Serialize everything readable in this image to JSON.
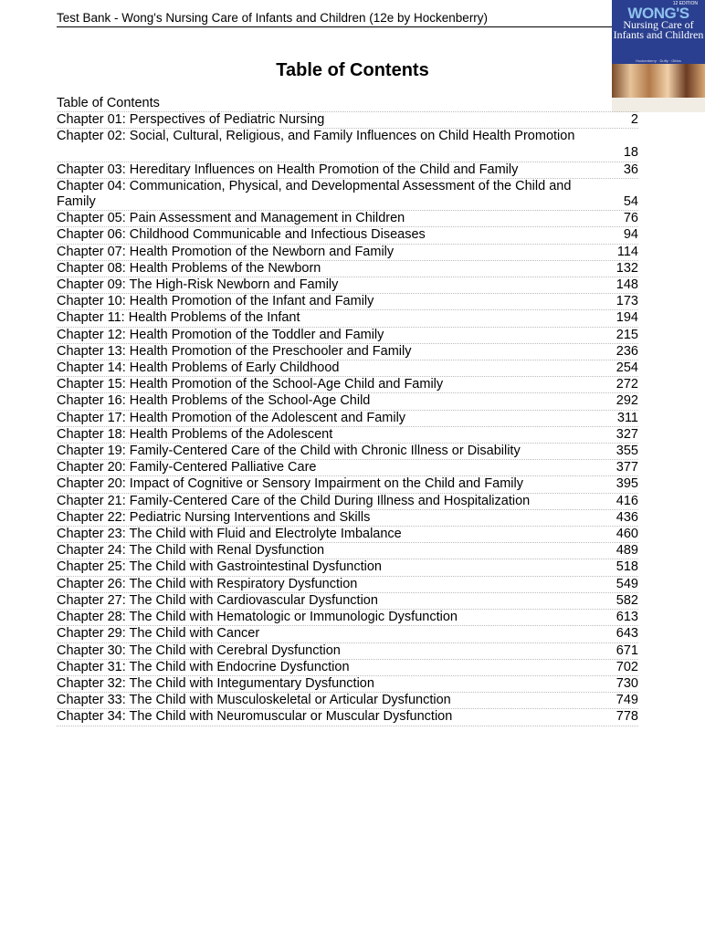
{
  "header": {
    "text": "Test Bank - Wong's Nursing Care of Infants and Children (12e by Hockenberry)"
  },
  "cover": {
    "edition": "12 EDITION",
    "title_line1": "WONG'S",
    "title_line2": "Nursing Care of Infants and Children",
    "authors": "Hockenberry · Duffy · Gibbs"
  },
  "title": "Table of Contents",
  "toc_label": "Table of Contents",
  "entries": [
    {
      "title": "Chapter 01: Perspectives of Pediatric Nursing",
      "page": "2"
    },
    {
      "title": "Chapter 02: Social, Cultural, Religious, and Family Influences on Child Health Promotion",
      "page": "18",
      "wrap": true
    },
    {
      "title": "Chapter 03: Hereditary Influences on Health Promotion of the Child and Family",
      "page": "36"
    },
    {
      "title": "Chapter 04: Communication, Physical, and Developmental Assessment of the Child and Family",
      "page": "54"
    },
    {
      "title": "Chapter 05: Pain Assessment and Management in Children",
      "page": "76"
    },
    {
      "title": "Chapter 06: Childhood Communicable and Infectious Diseases",
      "page": "94"
    },
    {
      "title": "Chapter 07: Health Promotion of the Newborn and Family",
      "page": "114"
    },
    {
      "title": "Chapter 08: Health Problems of the Newborn",
      "page": "132"
    },
    {
      "title": "Chapter 09: The High-Risk Newborn and Family",
      "page": "148"
    },
    {
      "title": "Chapter 10: Health Promotion of the Infant and Family",
      "page": "173"
    },
    {
      "title": "Chapter 11: Health Problems of the Infant",
      "page": "194"
    },
    {
      "title": "Chapter 12: Health Promotion of the Toddler and Family",
      "page": "215"
    },
    {
      "title": "Chapter 13: Health Promotion of the Preschooler and Family",
      "page": "236"
    },
    {
      "title": "Chapter 14: Health Problems of Early Childhood",
      "page": "254"
    },
    {
      "title": "Chapter 15: Health Promotion of the School-Age Child and Family",
      "page": "272"
    },
    {
      "title": "Chapter 16: Health Problems of the School-Age Child",
      "page": "292"
    },
    {
      "title": "Chapter 17: Health Promotion of the Adolescent and Family",
      "page": "311"
    },
    {
      "title": "Chapter 18: Health Problems of the Adolescent",
      "page": "327"
    },
    {
      "title": "Chapter 19: Family-Centered Care of the Child with Chronic Illness or Disability",
      "page": "355"
    },
    {
      "title": "Chapter 20: Family-Centered Palliative Care",
      "page": "377"
    },
    {
      "title": "Chapter 20: Impact of Cognitive or Sensory Impairment on the Child and Family",
      "page": "395"
    },
    {
      "title": "Chapter 21: Family-Centered Care of the Child During Illness and Hospitalization",
      "page": "416"
    },
    {
      "title": "Chapter 22: Pediatric Nursing Interventions and Skills",
      "page": "436"
    },
    {
      "title": "Chapter 23: The Child with Fluid and Electrolyte Imbalance",
      "page": "460"
    },
    {
      "title": "Chapter 24: The Child with Renal Dysfunction",
      "page": "489"
    },
    {
      "title": "Chapter 25: The Child with Gastrointestinal Dysfunction",
      "page": "518"
    },
    {
      "title": "Chapter 26: The Child with Respiratory Dysfunction",
      "page": "549"
    },
    {
      "title": "Chapter 27: The Child with Cardiovascular Dysfunction",
      "page": "582"
    },
    {
      "title": "Chapter 28: The Child with Hematologic or Immunologic Dysfunction",
      "page": "613"
    },
    {
      "title": "Chapter 29: The Child with Cancer",
      "page": "643"
    },
    {
      "title": "Chapter 30: The Child with Cerebral Dysfunction",
      "page": "671"
    },
    {
      "title": "Chapter 31: The Child with Endocrine Dysfunction",
      "page": "702"
    },
    {
      "title": "Chapter 32: The Child with Integumentary Dysfunction",
      "page": "730"
    },
    {
      "title": "Chapter 33: The Child with Musculoskeletal or Articular Dysfunction",
      "page": "749"
    },
    {
      "title": "Chapter 34: The Child with Neuromuscular or Muscular Dysfunction",
      "page": "778"
    }
  ]
}
